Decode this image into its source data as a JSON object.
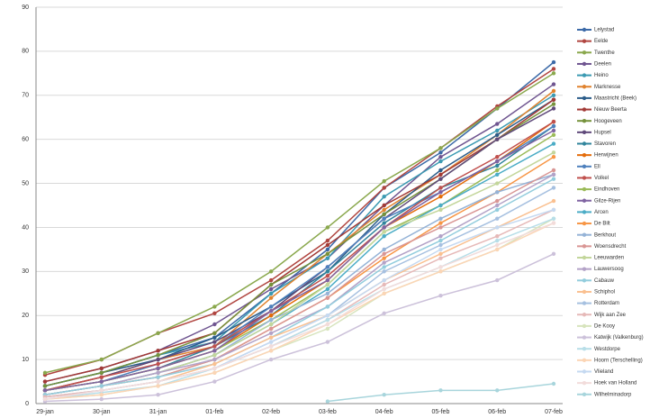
{
  "chart_data": {
    "type": "line",
    "categories": [
      "29-jan",
      "30-jan",
      "31-jan",
      "01-feb",
      "02-feb",
      "03-feb",
      "04-feb",
      "05-feb",
      "06-feb",
      "07-feb"
    ],
    "ylim": [
      0,
      90
    ],
    "yticks": [
      0,
      10,
      20,
      30,
      40,
      50,
      60,
      70,
      80,
      90
    ],
    "grid": true,
    "legend": "right",
    "series": [
      {
        "name": "Lelystad",
        "color": "#3c6aa8",
        "values": [
          4,
          7,
          11,
          15,
          25,
          35,
          49,
          57,
          67,
          77.5
        ]
      },
      {
        "name": "Eelde",
        "color": "#b04540",
        "values": [
          6.5,
          10,
          16,
          20.5,
          28,
          37,
          49,
          58,
          67.5,
          76
        ]
      },
      {
        "name": "Twenthe",
        "color": "#8aa84d",
        "values": [
          7,
          10,
          16,
          22,
          30,
          40,
          50.5,
          58,
          67,
          75
        ]
      },
      {
        "name": "Deelen",
        "color": "#6f5590",
        "values": [
          5,
          8,
          12,
          18,
          26,
          33,
          45,
          56,
          63.5,
          72.5
        ]
      },
      {
        "name": "Heino",
        "color": "#3b9ab2",
        "values": [
          4,
          7,
          11,
          14,
          25,
          33,
          47,
          55,
          62,
          70
        ]
      },
      {
        "name": "Marknesse",
        "color": "#e0832f",
        "values": [
          3,
          6,
          10,
          13,
          24,
          34,
          44,
          52,
          61,
          71
        ]
      },
      {
        "name": "Maastricht (Beek)",
        "color": "#2c5d8a",
        "values": [
          4,
          7,
          10,
          15,
          22,
          30,
          43,
          53,
          61,
          69
        ]
      },
      {
        "name": "Nieuw Beerta",
        "color": "#a23a36",
        "values": [
          5,
          8,
          12,
          16,
          27,
          36,
          45,
          52,
          60,
          69
        ]
      },
      {
        "name": "Hoogeveen",
        "color": "#76923c",
        "values": [
          4,
          7,
          11,
          16,
          27,
          34,
          43,
          51,
          60,
          68
        ]
      },
      {
        "name": "Hupsel",
        "color": "#604a7b",
        "values": [
          3,
          6,
          10,
          14,
          21,
          31,
          42,
          51,
          60,
          67
        ]
      },
      {
        "name": "Stavoren",
        "color": "#31859c",
        "values": [
          3,
          5,
          8,
          13,
          20,
          30,
          41,
          49,
          54,
          63
        ]
      },
      {
        "name": "Herwijnen",
        "color": "#e46c0a",
        "values": [
          3,
          5,
          8,
          12,
          20,
          28,
          40,
          47,
          55,
          64
        ]
      },
      {
        "name": "Ell",
        "color": "#4f81bd",
        "values": [
          3,
          5,
          9,
          13,
          22,
          31,
          42,
          48,
          55,
          63
        ]
      },
      {
        "name": "Volkel",
        "color": "#c0504d",
        "values": [
          3,
          6,
          9,
          13,
          21,
          29,
          40,
          49,
          56,
          64
        ]
      },
      {
        "name": "Eindhoven",
        "color": "#9bbb59",
        "values": [
          3,
          5,
          8,
          12,
          19,
          27,
          39,
          45,
          53,
          61
        ]
      },
      {
        "name": "Gilze-Rijen",
        "color": "#8064a2",
        "values": [
          3,
          5,
          8,
          12,
          21,
          28,
          40,
          48,
          55,
          62
        ]
      },
      {
        "name": "Arcen",
        "color": "#4bacc6",
        "values": [
          2,
          4,
          7,
          11,
          18,
          26,
          38,
          45,
          52,
          59
        ]
      },
      {
        "name": "De Bilt",
        "color": "#f79646",
        "values": [
          2,
          4,
          6,
          10,
          17,
          24,
          33,
          41,
          48,
          56
        ]
      },
      {
        "name": "Berkhout",
        "color": "#95b3d7",
        "values": [
          2,
          4,
          7,
          11,
          19,
          25,
          35,
          42,
          48,
          52
        ]
      },
      {
        "name": "Woensdrecht",
        "color": "#d99694",
        "values": [
          2,
          4,
          6,
          10,
          17,
          24,
          34,
          40,
          46,
          53
        ]
      },
      {
        "name": "Leeuwarden",
        "color": "#c3d69b",
        "values": [
          2,
          4,
          7,
          11,
          18,
          27,
          39,
          44,
          50,
          57
        ]
      },
      {
        "name": "Lauwersoog",
        "color": "#b3a2c7",
        "values": [
          2,
          4,
          7,
          10,
          16,
          22,
          32,
          38,
          45,
          52
        ]
      },
      {
        "name": "Cabauw",
        "color": "#93cddd",
        "values": [
          2,
          4,
          6,
          9,
          15,
          22,
          31,
          37,
          44,
          51
        ]
      },
      {
        "name": "Schiphol",
        "color": "#fac090",
        "values": [
          1.5,
          3,
          5,
          9,
          15,
          20,
          28,
          34,
          40,
          46
        ]
      },
      {
        "name": "Rotterdam",
        "color": "#a6c0e0",
        "values": [
          1.5,
          3,
          5,
          8,
          14,
          20,
          30,
          36,
          42,
          49
        ]
      },
      {
        "name": "Wijk aan Zee",
        "color": "#e6b9b8",
        "values": [
          1.5,
          3,
          5,
          8,
          13,
          19,
          27,
          33,
          38,
          44
        ]
      },
      {
        "name": "De Kooy",
        "color": "#d7e4bd",
        "values": [
          1,
          2,
          4,
          7,
          12,
          17,
          25,
          30,
          35,
          42
        ]
      },
      {
        "name": "Katwijk (Valkenburg)",
        "color": "#ccc1da",
        "values": [
          0.5,
          1,
          2,
          5,
          10,
          14,
          20.5,
          24.5,
          28,
          34
        ]
      },
      {
        "name": "Westdorpe",
        "color": "#b7dee8",
        "values": [
          1,
          2.5,
          4,
          8,
          13,
          19,
          26,
          31,
          37,
          42
        ]
      },
      {
        "name": "Hoorn (Terschelling)",
        "color": "#fbd5b5",
        "values": [
          1,
          2,
          4,
          7,
          12,
          18,
          25,
          30,
          35,
          41
        ]
      },
      {
        "name": "Vlieland",
        "color": "#c5d9f1",
        "values": [
          1,
          3,
          5,
          8,
          14,
          20,
          28,
          35,
          40,
          44
        ]
      },
      {
        "name": "Hoek van Holland",
        "color": "#f2dcdb",
        "values": [
          1,
          3,
          5,
          8,
          13,
          18,
          26,
          31,
          36,
          41
        ]
      },
      {
        "name": "Wilhelminadorp",
        "color": "#a8d5dc",
        "values": [
          null,
          null,
          null,
          null,
          null,
          0.5,
          2,
          3,
          3,
          4.5
        ]
      }
    ]
  }
}
